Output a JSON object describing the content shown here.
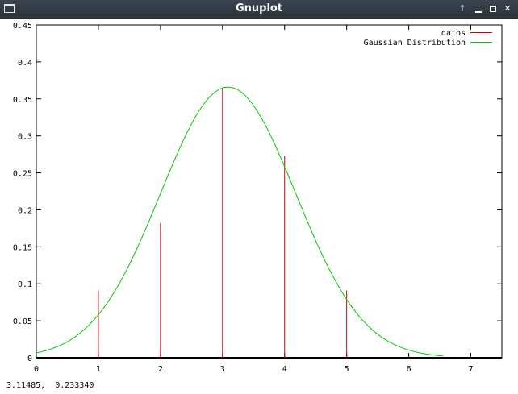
{
  "window": {
    "title": "Gnuplot",
    "controls": [
      "↑",
      "_",
      "□",
      "✕"
    ]
  },
  "statusbar": {
    "coordinates": "3.11485,  0.233340"
  },
  "chart_data": {
    "type": "bar",
    "title": "",
    "xlabel": "",
    "ylabel": "",
    "xlim": [
      0,
      7.5
    ],
    "ylim": [
      0,
      0.45
    ],
    "x_ticks": [
      "0",
      "1",
      "2",
      "3",
      "4",
      "5",
      "6",
      "7"
    ],
    "y_ticks": [
      "0",
      "0.05",
      "0.1",
      "0.15",
      "0.2",
      "0.25",
      "0.3",
      "0.35",
      "0.4",
      "0.45"
    ],
    "legend_position": "top-right",
    "grid": false,
    "series": [
      {
        "name": "datos",
        "style": "impulses",
        "color": "#cc0000",
        "x": [
          1,
          2,
          3,
          4,
          5
        ],
        "values": [
          0.091,
          0.182,
          0.364,
          0.273,
          0.091
        ]
      },
      {
        "name": "Gaussian Distribution",
        "style": "line",
        "color": "#00cc00",
        "mu": 3.09,
        "sigma": 1.09,
        "x_range": [
          0,
          6.55
        ]
      }
    ]
  }
}
